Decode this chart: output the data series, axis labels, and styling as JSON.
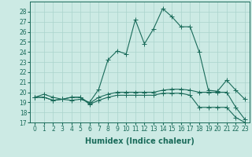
{
  "xlabel": "Humidex (Indice chaleur)",
  "x": [
    0,
    1,
    2,
    3,
    4,
    5,
    6,
    7,
    8,
    9,
    10,
    11,
    12,
    13,
    14,
    15,
    16,
    17,
    18,
    19,
    20,
    21,
    22,
    23
  ],
  "series": [
    [
      19.5,
      19.8,
      19.5,
      19.3,
      19.2,
      19.3,
      19.0,
      20.3,
      23.2,
      24.1,
      23.8,
      27.2,
      24.8,
      26.3,
      28.3,
      27.5,
      26.5,
      26.5,
      24.0,
      20.2,
      20.1,
      21.2,
      20.2,
      19.3
    ],
    [
      19.5,
      19.5,
      19.2,
      19.3,
      19.5,
      19.5,
      18.9,
      19.5,
      19.8,
      20.0,
      20.0,
      20.0,
      20.0,
      20.0,
      20.2,
      20.3,
      20.3,
      20.2,
      20.0,
      20.0,
      20.0,
      20.0,
      18.5,
      17.3
    ],
    [
      19.5,
      19.5,
      19.2,
      19.3,
      19.5,
      19.5,
      18.8,
      19.2,
      19.5,
      19.7,
      19.7,
      19.7,
      19.7,
      19.7,
      19.9,
      19.9,
      19.9,
      19.7,
      18.5,
      18.5,
      18.5,
      18.5,
      17.5,
      17.0
    ]
  ],
  "line_color": "#1a6b5a",
  "marker": "+",
  "markersize": 4,
  "linewidth": 0.8,
  "xlim": [
    -0.5,
    23.5
  ],
  "ylim": [
    17,
    29
  ],
  "yticks": [
    17,
    18,
    19,
    20,
    21,
    22,
    23,
    24,
    25,
    26,
    27,
    28
  ],
  "xticks": [
    0,
    1,
    2,
    3,
    4,
    5,
    6,
    7,
    8,
    9,
    10,
    11,
    12,
    13,
    14,
    15,
    16,
    17,
    18,
    19,
    20,
    21,
    22,
    23
  ],
  "bg_color": "#cceae4",
  "grid_color": "#aad4cc",
  "tick_fontsize": 5.5,
  "label_fontsize": 7
}
